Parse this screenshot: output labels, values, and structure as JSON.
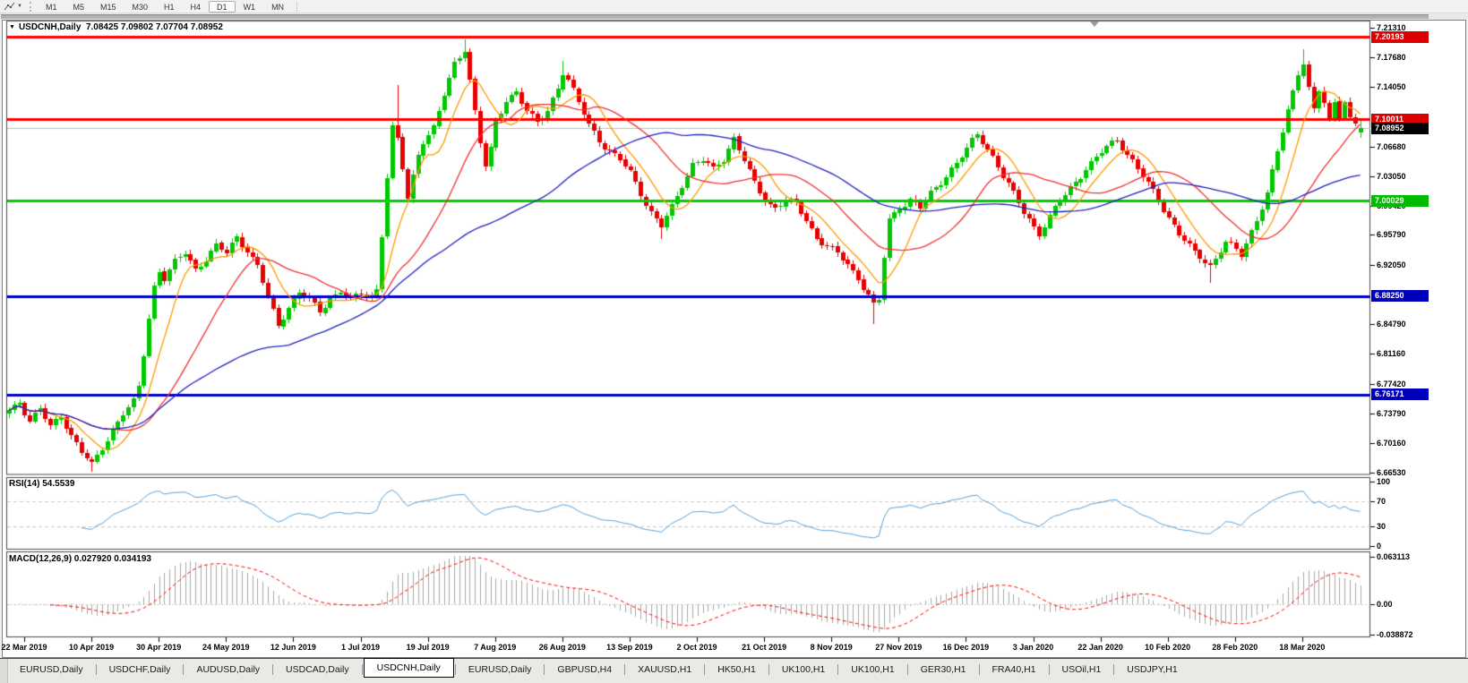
{
  "toolbar": {
    "tool_icon": "polyline-tool",
    "timeframes": [
      "M1",
      "M5",
      "M15",
      "M30",
      "H1",
      "H4",
      "D1",
      "W1",
      "MN"
    ],
    "active_timeframe": "D1"
  },
  "chart_window": {
    "title_arrow": "▼",
    "title_symbol": "USDCNH,Daily",
    "title_ohlc": "7.08425 7.09802 7.07704 7.08952"
  },
  "chart_data": {
    "type": "candlestick",
    "symbol": "USDCNH",
    "period": "Daily",
    "last_ohlc": {
      "open": 7.08425,
      "high": 7.09802,
      "low": 7.07704,
      "close": 7.08952
    },
    "y_axis": {
      "price_top": 7.2207,
      "price_bottom": 6.6631,
      "ticks": [
        "7.21310",
        "7.17680",
        "7.14050",
        "7.06680",
        "7.03050",
        "6.99420",
        "6.95790",
        "6.92050",
        "6.84790",
        "6.81160",
        "6.77420",
        "6.73790",
        "6.70160",
        "6.66530"
      ]
    },
    "levels": [
      {
        "price": 7.20193,
        "label": "7.20193",
        "color": "#ff0000",
        "badge": "#dd0000",
        "width": 3
      },
      {
        "price": 7.10011,
        "label": "7.10011",
        "color": "#ff0000",
        "badge": "#dd0000",
        "width": 3
      },
      {
        "price": 7.08952,
        "label": "7.08952",
        "color": "#bdbdbd",
        "badge": "#000000",
        "width": 1,
        "role": "current-price"
      },
      {
        "price": 7.00029,
        "label": "7.00029",
        "color": "#00cc00",
        "badge": "#00bb00",
        "width": 3
      },
      {
        "price": 6.8825,
        "label": "6.88250",
        "color": "#0000cc",
        "badge": "#0000bb",
        "width": 3
      },
      {
        "price": 6.76171,
        "label": "6.76171",
        "color": "#0000cc",
        "badge": "#0000bb",
        "width": 3
      }
    ],
    "x_axis": {
      "dates": [
        "22 Mar 2019",
        "10 Apr 2019",
        "30 Apr 2019",
        "24 May 2019",
        "12 Jun 2019",
        "1 Jul 2019",
        "19 Jul 2019",
        "7 Aug 2019",
        "26 Aug 2019",
        "13 Sep 2019",
        "2 Oct 2019",
        "21 Oct 2019",
        "8 Nov 2019",
        "27 Nov 2019",
        "16 Dec 2019",
        "3 Jan 2020",
        "22 Jan 2020",
        "10 Feb 2020",
        "28 Feb 2020",
        "18 Mar 2020"
      ]
    },
    "candles": {
      "count": 262,
      "bull_color": "#00c800",
      "bear_color": "#e80000",
      "close_anchors": [
        [
          0,
          6.74
        ],
        [
          2,
          6.752
        ],
        [
          4,
          6.73
        ],
        [
          6,
          6.745
        ],
        [
          8,
          6.72
        ],
        [
          10,
          6.735
        ],
        [
          12,
          6.712
        ],
        [
          14,
          6.692
        ],
        [
          16,
          6.674
        ],
        [
          18,
          6.695
        ],
        [
          20,
          6.718
        ],
        [
          22,
          6.74
        ],
        [
          24,
          6.752
        ],
        [
          25,
          6.77
        ],
        [
          26,
          6.81
        ],
        [
          27,
          6.855
        ],
        [
          28,
          6.895
        ],
        [
          29,
          6.915
        ],
        [
          30,
          6.905
        ],
        [
          32,
          6.925
        ],
        [
          34,
          6.935
        ],
        [
          36,
          6.915
        ],
        [
          38,
          6.93
        ],
        [
          40,
          6.945
        ],
        [
          42,
          6.935
        ],
        [
          44,
          6.955
        ],
        [
          46,
          6.94
        ],
        [
          48,
          6.92
        ],
        [
          50,
          6.88
        ],
        [
          52,
          6.845
        ],
        [
          54,
          6.87
        ],
        [
          56,
          6.888
        ],
        [
          58,
          6.878
        ],
        [
          60,
          6.862
        ],
        [
          62,
          6.88
        ],
        [
          64,
          6.89
        ],
        [
          66,
          6.878
        ],
        [
          68,
          6.885
        ],
        [
          70,
          6.882
        ],
        [
          71,
          6.892
        ],
        [
          72,
          6.96
        ],
        [
          73,
          7.03
        ],
        [
          74,
          7.09
        ],
        [
          75,
          7.075
        ],
        [
          76,
          7.04
        ],
        [
          77,
          7.002
        ],
        [
          78,
          7.03
        ],
        [
          79,
          7.058
        ],
        [
          80,
          7.075
        ],
        [
          82,
          7.09
        ],
        [
          84,
          7.13
        ],
        [
          86,
          7.168
        ],
        [
          88,
          7.188
        ],
        [
          89,
          7.15
        ],
        [
          90,
          7.11
        ],
        [
          91,
          7.072
        ],
        [
          92,
          7.042
        ],
        [
          93,
          7.062
        ],
        [
          94,
          7.095
        ],
        [
          96,
          7.125
        ],
        [
          98,
          7.135
        ],
        [
          100,
          7.11
        ],
        [
          102,
          7.095
        ],
        [
          104,
          7.112
        ],
        [
          106,
          7.14
        ],
        [
          107,
          7.158
        ],
        [
          108,
          7.148
        ],
        [
          110,
          7.12
        ],
        [
          112,
          7.095
        ],
        [
          114,
          7.075
        ],
        [
          116,
          7.06
        ],
        [
          118,
          7.05
        ],
        [
          120,
          7.035
        ],
        [
          122,
          7.01
        ],
        [
          124,
          6.985
        ],
        [
          126,
          6.968
        ],
        [
          128,
          6.992
        ],
        [
          130,
          7.02
        ],
        [
          132,
          7.045
        ],
        [
          134,
          7.05
        ],
        [
          136,
          7.038
        ],
        [
          138,
          7.052
        ],
        [
          140,
          7.078
        ],
        [
          142,
          7.05
        ],
        [
          144,
          7.02
        ],
        [
          146,
          7.0
        ],
        [
          148,
          6.992
        ],
        [
          150,
          7.002
        ],
        [
          152,
          6.995
        ],
        [
          154,
          6.975
        ],
        [
          156,
          6.955
        ],
        [
          158,
          6.945
        ],
        [
          160,
          6.935
        ],
        [
          162,
          6.92
        ],
        [
          164,
          6.905
        ],
        [
          166,
          6.885
        ],
        [
          167,
          6.872
        ],
        [
          168,
          6.878
        ],
        [
          169,
          6.93
        ],
        [
          170,
          6.975
        ],
        [
          172,
          6.992
        ],
        [
          174,
          7.002
        ],
        [
          176,
          6.992
        ],
        [
          178,
          7.008
        ],
        [
          180,
          7.022
        ],
        [
          182,
          7.04
        ],
        [
          184,
          7.056
        ],
        [
          187,
          7.08
        ],
        [
          190,
          7.055
        ],
        [
          193,
          7.02
        ],
        [
          196,
          6.985
        ],
        [
          199,
          6.96
        ],
        [
          202,
          6.99
        ],
        [
          205,
          7.015
        ],
        [
          208,
          7.04
        ],
        [
          211,
          7.06
        ],
        [
          214,
          7.075
        ],
        [
          217,
          7.05
        ],
        [
          220,
          7.02
        ],
        [
          223,
          6.99
        ],
        [
          226,
          6.96
        ],
        [
          229,
          6.935
        ],
        [
          232,
          6.92
        ],
        [
          235,
          6.95
        ],
        [
          238,
          6.932
        ],
        [
          240,
          6.962
        ],
        [
          243,
          7.01
        ],
        [
          245,
          7.06
        ],
        [
          247,
          7.11
        ],
        [
          249,
          7.158
        ],
        [
          250,
          7.172
        ],
        [
          251,
          7.14
        ],
        [
          252,
          7.112
        ],
        [
          253,
          7.135
        ],
        [
          254,
          7.12
        ],
        [
          255,
          7.098
        ],
        [
          256,
          7.12
        ],
        [
          257,
          7.105
        ],
        [
          258,
          7.125
        ],
        [
          259,
          7.102
        ],
        [
          260,
          7.095
        ],
        [
          261,
          7.0895
        ]
      ],
      "overrides": {
        "16": {
          "low": 6.666
        },
        "75": {
          "high": 7.142
        },
        "88": {
          "high": 7.1985
        },
        "107": {
          "high": 7.172
        },
        "126": {
          "low": 6.953
        },
        "167": {
          "low": 6.848
        },
        "232": {
          "low": 6.899
        },
        "250": {
          "high": 7.186
        }
      },
      "last": [
        7.08425,
        7.09802,
        7.07704,
        7.08952
      ]
    },
    "moving_averages": [
      {
        "period": 8,
        "color": "#ff9900"
      },
      {
        "period": 21,
        "color": "#f03030"
      },
      {
        "period": 55,
        "color": "#2020c0"
      }
    ],
    "indicators": {
      "rsi": {
        "label": "RSI(14) 54.5539",
        "period": 14,
        "value": 54.5539,
        "color": "#55a0d8",
        "range": [
          0,
          100
        ],
        "levels": [
          70,
          30
        ],
        "ticks": [
          {
            "v": 100,
            "t": "100"
          },
          {
            "v": 70,
            "t": "70"
          },
          {
            "v": 30,
            "t": "30"
          },
          {
            "v": 0,
            "t": "0"
          }
        ]
      },
      "macd": {
        "label": "MACD(12,26,9) 0.027920 0.034193",
        "fast": 12,
        "slow": 26,
        "signal": 9,
        "values": [
          0.02792,
          0.034193
        ],
        "histogram_color": "#a8a8a8",
        "signal_color": "#ff0000",
        "range": [
          -0.038872,
          0.063113
        ],
        "ticks": [
          {
            "v": 0.063113,
            "t": "0.063113"
          },
          {
            "v": 0,
            "t": "0.00"
          },
          {
            "v": -0.038872,
            "t": "-0.038872"
          }
        ]
      }
    }
  },
  "tabs": {
    "items": [
      "EURUSD,Daily",
      "USDCHF,Daily",
      "AUDUSD,Daily",
      "USDCAD,Daily",
      "USDCNH,Daily",
      "EURUSD,Daily",
      "GBPUSD,H4",
      "XAUUSD,H1",
      "HK50,H1",
      "UK100,H1",
      "UK100,H1",
      "GER30,H1",
      "FRA40,H1",
      "USOil,H1",
      "USDJPY,H1"
    ],
    "active_index": 4
  }
}
